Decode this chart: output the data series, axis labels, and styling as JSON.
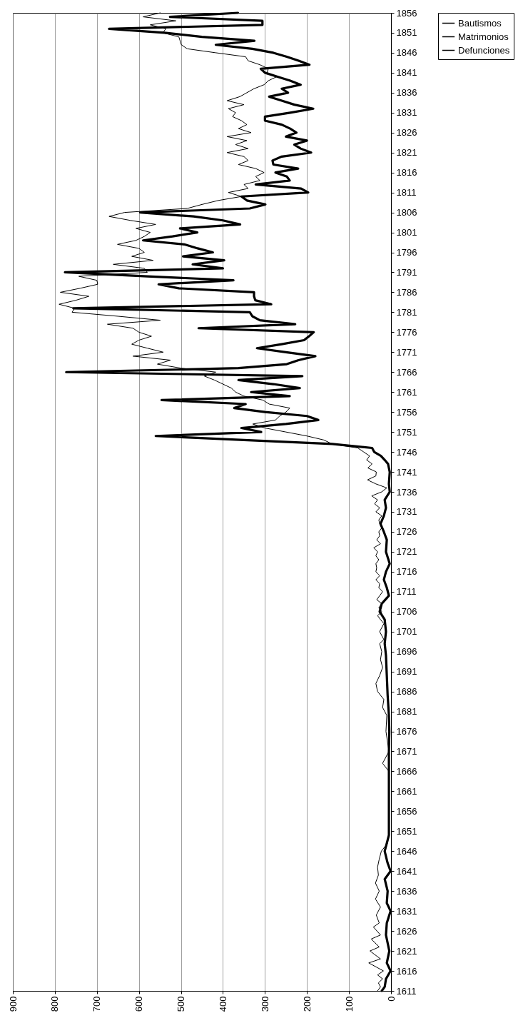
{
  "chart_data": {
    "type": "line",
    "orientation": "horizontal",
    "legend": "right",
    "grid": "x",
    "ylim": [
      1611,
      1856
    ],
    "yticks": [
      1611,
      1616,
      1621,
      1626,
      1631,
      1636,
      1641,
      1646,
      1651,
      1656,
      1661,
      1666,
      1671,
      1676,
      1681,
      1686,
      1691,
      1696,
      1701,
      1706,
      1711,
      1716,
      1721,
      1726,
      1731,
      1736,
      1741,
      1746,
      1751,
      1756,
      1761,
      1766,
      1771,
      1776,
      1781,
      1786,
      1791,
      1796,
      1801,
      1806,
      1811,
      1816,
      1821,
      1826,
      1831,
      1836,
      1841,
      1846,
      1851,
      1856
    ],
    "xlim": [
      900,
      0
    ],
    "xticks": [
      0,
      100,
      200,
      300,
      400,
      500,
      600,
      700,
      800,
      900
    ],
    "series": [
      {
        "name": "Bautismos",
        "color": "#000000",
        "x": [
          1611,
          1612,
          1613,
          1614,
          1615,
          1616,
          1618,
          1619,
          1621,
          1622,
          1624,
          1625,
          1627,
          1628,
          1630,
          1632,
          1634,
          1636,
          1638,
          1640,
          1642,
          1644,
          1646,
          1648,
          1651,
          1655,
          1660,
          1666,
          1668,
          1671,
          1676,
          1680,
          1682,
          1684,
          1686,
          1688,
          1690,
          1692,
          1694,
          1696,
          1698,
          1699,
          1700,
          1701,
          1702,
          1703,
          1704,
          1705,
          1706,
          1707,
          1708,
          1709,
          1710,
          1711,
          1712,
          1713,
          1714,
          1715,
          1716,
          1717,
          1718,
          1719,
          1720,
          1721,
          1722,
          1723,
          1724,
          1725,
          1726,
          1727,
          1728,
          1729,
          1730,
          1731,
          1732,
          1733,
          1734,
          1735,
          1736,
          1737,
          1738,
          1739,
          1740,
          1741,
          1742,
          1743,
          1744,
          1745,
          1746,
          1747,
          1748,
          1749,
          1750,
          1751,
          1752,
          1753,
          1754,
          1755,
          1756,
          1757,
          1758,
          1759,
          1760,
          1761,
          1762,
          1763,
          1764,
          1765,
          1766,
          1767,
          1768,
          1769,
          1770,
          1771,
          1772,
          1773,
          1774,
          1775,
          1776,
          1777,
          1778,
          1779,
          1780,
          1781,
          1782,
          1783,
          1784,
          1785,
          1786,
          1787,
          1788,
          1789,
          1790,
          1791,
          1792,
          1793,
          1794,
          1795,
          1796,
          1797,
          1798,
          1799,
          1800,
          1801,
          1802,
          1803,
          1804,
          1805,
          1806,
          1807,
          1808,
          1809,
          1810,
          1811,
          1812,
          1813,
          1814,
          1815,
          1816,
          1817,
          1818,
          1819,
          1820,
          1821,
          1822,
          1823,
          1824,
          1825,
          1826,
          1827,
          1828,
          1829,
          1830,
          1831,
          1832,
          1833,
          1834,
          1835,
          1836,
          1837,
          1838,
          1839,
          1840,
          1841,
          1842,
          1843,
          1844,
          1845,
          1846,
          1847,
          1848,
          1849,
          1850,
          1851,
          1852,
          1853,
          1854,
          1855,
          1856
        ],
        "values": [
          32,
          25,
          30,
          20,
          32,
          18,
          53,
          25,
          50,
          28,
          47,
          25,
          42,
          28,
          35,
          25,
          37,
          28,
          37,
          30,
          32,
          28,
          23,
          8,
          5,
          5,
          5,
          5,
          20,
          5,
          12,
          10,
          20,
          17,
          32,
          36,
          27,
          20,
          25,
          22,
          27,
          17,
          22,
          27,
          22,
          17,
          25,
          32,
          22,
          29,
          22,
          34,
          27,
          20,
          29,
          27,
          36,
          27,
          36,
          34,
          36,
          29,
          36,
          32,
          41,
          25,
          34,
          27,
          29,
          22,
          27,
          29,
          22,
          36,
          27,
          39,
          32,
          46,
          22,
          10,
          36,
          56,
          36,
          35,
          55,
          45,
          58,
          51,
          65,
          79,
          140,
          160,
          200,
          250,
          300,
          329,
          275,
          265,
          250,
          241,
          290,
          305,
          350,
          370,
          380,
          400,
          420,
          444,
          417,
          500,
          556,
          525,
          614,
          542,
          580,
          617,
          600,
          570,
          600,
          614,
          675,
          549,
          650,
          759,
          753,
          790,
          750,
          719,
          787,
          740,
          698,
          700,
          743,
          580,
          587,
          661,
          566,
          617,
          587,
          600,
          651,
          607,
          587,
          573,
          607,
          560,
          620,
          671,
          634,
          485,
          450,
          411,
          356,
          387,
          340,
          350,
          312,
          322,
          302,
          322,
          363,
          340,
          350,
          390,
          340,
          370,
          343,
          390,
          333,
          363,
          343,
          356,
          377,
          370,
          387,
          350,
          390,
          360,
          343,
          326,
          302,
          292,
          272,
          295,
          292,
          312,
          340,
          346,
          417,
          485,
          499,
          502,
          505,
          543,
          536,
          573,
          512,
          590,
          549
        ]
      },
      {
        "name": "Matrimonios",
        "color": "#000000"
      },
      {
        "name": "Defunciones",
        "color": "#000000",
        "x": [
          1611,
          1612,
          1614,
          1616,
          1618,
          1621,
          1625,
          1628,
          1631,
          1633,
          1636,
          1639,
          1641,
          1643,
          1646,
          1650,
          1655,
          1660,
          1665,
          1671,
          1676,
          1680,
          1685,
          1690,
          1695,
          1698,
          1701,
          1704,
          1706,
          1708,
          1710,
          1712,
          1714,
          1716,
          1718,
          1721,
          1724,
          1726,
          1728,
          1730,
          1732,
          1734,
          1736,
          1738,
          1741,
          1743,
          1744,
          1745,
          1746,
          1747,
          1748,
          1749,
          1750,
          1751,
          1752,
          1753,
          1754,
          1755,
          1756,
          1757,
          1758,
          1759,
          1760,
          1761,
          1762,
          1763,
          1764,
          1765,
          1766,
          1767,
          1768,
          1769,
          1770,
          1771,
          1772,
          1773,
          1774,
          1775,
          1776,
          1777,
          1778,
          1779,
          1780,
          1781,
          1782,
          1783,
          1784,
          1785,
          1786,
          1787,
          1788,
          1789,
          1790,
          1791,
          1792,
          1793,
          1794,
          1795,
          1796,
          1797,
          1798,
          1799,
          1800,
          1801,
          1802,
          1803,
          1804,
          1805,
          1806,
          1807,
          1808,
          1809,
          1810,
          1811,
          1812,
          1813,
          1814,
          1815,
          1816,
          1817,
          1818,
          1819,
          1820,
          1821,
          1822,
          1823,
          1824,
          1825,
          1826,
          1827,
          1828,
          1829,
          1830,
          1831,
          1832,
          1833,
          1834,
          1835,
          1836,
          1837,
          1838,
          1839,
          1840,
          1841,
          1842,
          1843,
          1844,
          1845,
          1846,
          1847,
          1848,
          1849,
          1850,
          1851,
          1852,
          1853,
          1854,
          1855,
          1856
        ],
        "values": [
          22,
          15,
          12,
          1,
          10,
          4,
          12,
          10,
          1,
          10,
          8,
          15,
          1,
          8,
          15,
          5,
          5,
          5,
          5,
          5,
          4,
          5,
          8,
          10,
          12,
          15,
          12,
          15,
          27,
          22,
          5,
          10,
          17,
          12,
          3,
          12,
          10,
          17,
          25,
          17,
          12,
          15,
          3,
          5,
          3,
          7,
          15,
          24,
          40,
          45,
          140,
          350,
          560,
          309,
          356,
          250,
          173,
          200,
          300,
          373,
          346,
          546,
          241,
          333,
          217,
          280,
          363,
          211,
          773,
          363,
          248,
          220,
          180,
          250,
          319,
          260,
          207,
          195,
          184,
          458,
          228,
          312,
          330,
          336,
          756,
          285,
          323,
          326,
          326,
          505,
          553,
          375,
          580,
          776,
          400,
          472,
          397,
          495,
          424,
          460,
          492,
          590,
          520,
          461,
          502,
          359,
          400,
          470,
          597,
          336,
          299,
          343,
          356,
          197,
          214,
          322,
          241,
          248,
          275,
          221,
          280,
          282,
          260,
          190,
          215,
          230,
          200,
          250,
          225,
          240,
          260,
          300,
          300,
          240,
          185,
          230,
          260,
          290,
          245,
          260,
          215,
          240,
          270,
          300,
          310,
          194,
          220,
          248,
          280,
          330,
          417,
          325,
          450,
          539,
          671,
          306,
          306,
          526,
          364
        ]
      }
    ]
  }
}
